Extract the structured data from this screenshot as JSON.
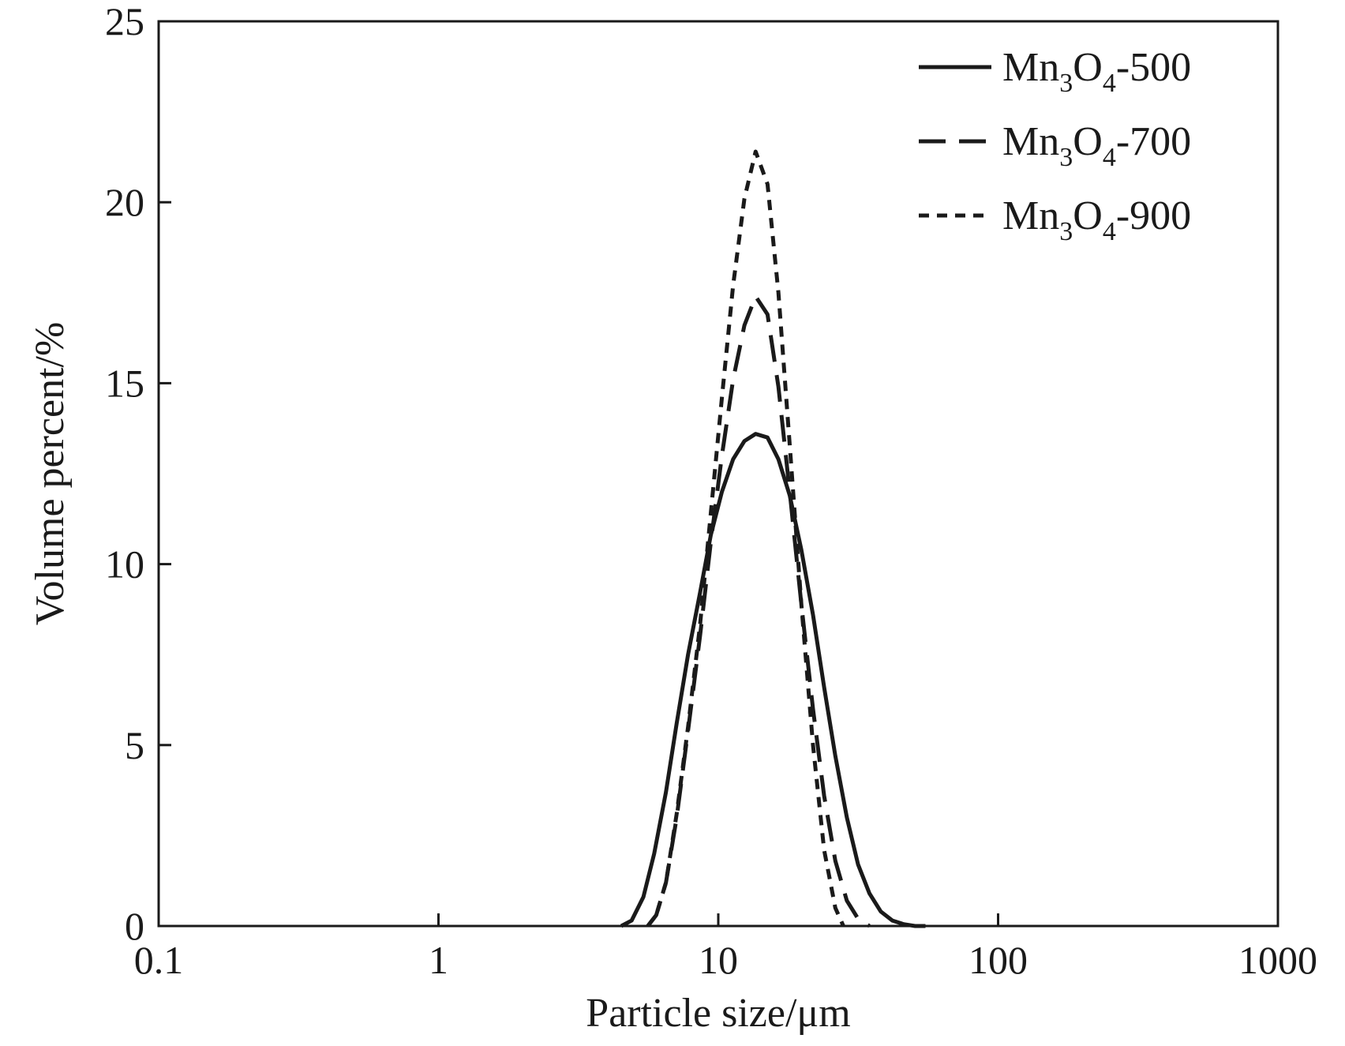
{
  "chart_data": {
    "type": "line",
    "xlabel": "Particle size/μm",
    "ylabel": "Volume percent/%",
    "x_scale": "log",
    "xlim": [
      0.1,
      1000
    ],
    "ylim": [
      0,
      25
    ],
    "x_ticks": [
      "0.1",
      "1",
      "10",
      "100",
      "1000"
    ],
    "y_ticks": [
      "0",
      "5",
      "10",
      "15",
      "20",
      "25"
    ],
    "grid": false,
    "legend_position": "top-right",
    "series": [
      {
        "name": "Mn3O4-500",
        "name_parts": [
          "Mn",
          "3",
          "O",
          "4",
          "-500"
        ],
        "line_style": "solid",
        "x": [
          4.5,
          4.9,
          5.4,
          5.9,
          6.5,
          7.1,
          7.8,
          8.6,
          9.4,
          10.3,
          11.3,
          12.4,
          13.6,
          15.0,
          16.4,
          18.0,
          19.8,
          21.8,
          23.9,
          26.2,
          28.8,
          31.6,
          34.7,
          38.1,
          41.9,
          46.0,
          50.5,
          55.0
        ],
        "y": [
          0,
          0.15,
          0.8,
          2.0,
          3.7,
          5.6,
          7.5,
          9.2,
          10.8,
          12.0,
          12.9,
          13.4,
          13.6,
          13.5,
          12.9,
          11.9,
          10.4,
          8.6,
          6.6,
          4.7,
          3.0,
          1.7,
          0.9,
          0.4,
          0.15,
          0.05,
          0,
          0
        ]
      },
      {
        "name": "Mn3O4-700",
        "name_parts": [
          "Mn",
          "3",
          "O",
          "4",
          "-700"
        ],
        "line_style": "dashed",
        "x": [
          5.6,
          6.0,
          6.5,
          7.1,
          7.8,
          8.6,
          9.4,
          10.3,
          11.3,
          12.4,
          13.6,
          15.0,
          16.4,
          18.0,
          19.8,
          21.8,
          23.9,
          26.2,
          28.8,
          31.6,
          34.7
        ],
        "y": [
          0,
          0.3,
          1.2,
          3.0,
          5.4,
          8.0,
          10.6,
          13.0,
          15.1,
          16.6,
          17.4,
          16.9,
          14.9,
          12.0,
          8.9,
          6.0,
          3.6,
          1.8,
          0.7,
          0.2,
          0
        ]
      },
      {
        "name": "Mn3O4-900",
        "name_parts": [
          "Mn",
          "3",
          "O",
          "4",
          "-900"
        ],
        "line_style": "dotted",
        "x": [
          5.6,
          6.0,
          6.5,
          7.1,
          7.8,
          8.6,
          9.4,
          10.3,
          11.3,
          12.4,
          13.6,
          15.0,
          16.4,
          18.0,
          19.8,
          21.8,
          23.9,
          26.2,
          28.0
        ],
        "y": [
          0,
          0.3,
          1.2,
          3.1,
          5.5,
          8.3,
          11.4,
          14.6,
          17.7,
          20.1,
          21.4,
          20.5,
          17.5,
          13.3,
          8.9,
          5.0,
          2.1,
          0.5,
          0
        ]
      }
    ]
  }
}
